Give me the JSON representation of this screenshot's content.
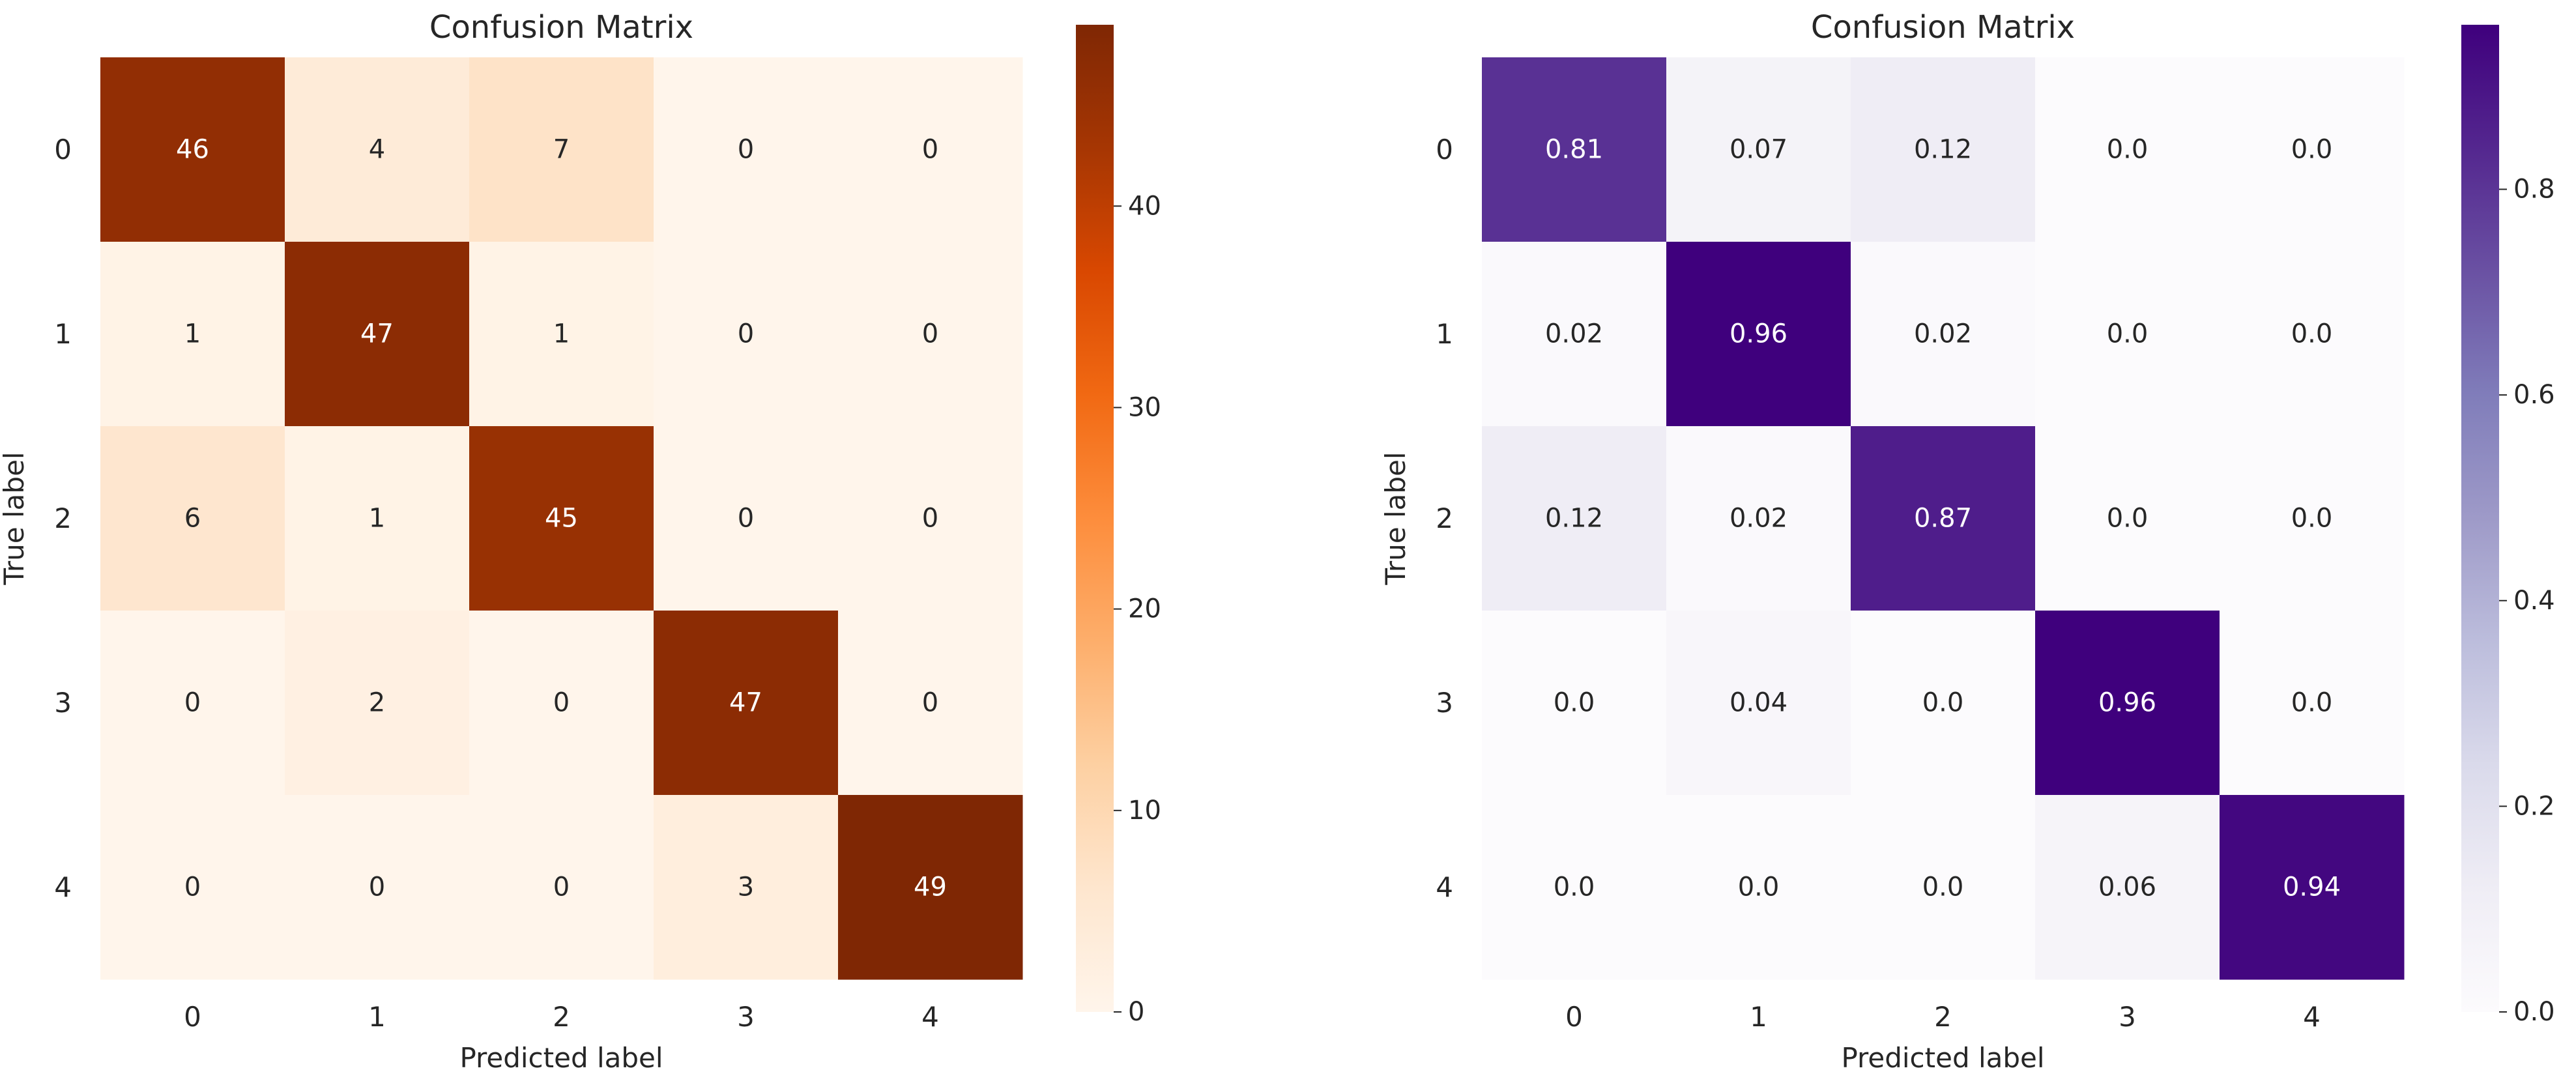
{
  "chart_data": [
    {
      "type": "heatmap",
      "title": "Confusion Matrix",
      "xlabel": "Predicted label",
      "ylabel": "True label",
      "x_categories": [
        "0",
        "1",
        "2",
        "3",
        "4"
      ],
      "y_categories": [
        "0",
        "1",
        "2",
        "3",
        "4"
      ],
      "values": [
        [
          46,
          4,
          7,
          0,
          0
        ],
        [
          1,
          47,
          1,
          0,
          0
        ],
        [
          6,
          1,
          45,
          0,
          0
        ],
        [
          0,
          2,
          0,
          47,
          0
        ],
        [
          0,
          0,
          0,
          3,
          49
        ]
      ],
      "cell_labels": [
        [
          "46",
          "4",
          "7",
          "0",
          "0"
        ],
        [
          "1",
          "47",
          "1",
          "0",
          "0"
        ],
        [
          "6",
          "1",
          "45",
          "0",
          "0"
        ],
        [
          "0",
          "2",
          "0",
          "47",
          "0"
        ],
        [
          "0",
          "0",
          "0",
          "3",
          "49"
        ]
      ],
      "colormap": "Oranges",
      "colormap_stops": [
        "#fff5eb",
        "#fee6ce",
        "#fdd0a2",
        "#fdae6b",
        "#fd8d3c",
        "#f16913",
        "#d94801",
        "#a63603",
        "#7f2704"
      ],
      "vmin": 0,
      "vmax": 49,
      "colorbar_ticks": [
        0,
        10,
        20,
        30,
        40
      ],
      "colorbar_tick_labels": [
        "0",
        "10",
        "20",
        "30",
        "40"
      ],
      "grid": false
    },
    {
      "type": "heatmap",
      "title": "Confusion Matrix",
      "xlabel": "Predicted label",
      "ylabel": "True label",
      "x_categories": [
        "0",
        "1",
        "2",
        "3",
        "4"
      ],
      "y_categories": [
        "0",
        "1",
        "2",
        "3",
        "4"
      ],
      "values": [
        [
          0.81,
          0.07,
          0.12,
          0.0,
          0.0
        ],
        [
          0.02,
          0.96,
          0.02,
          0.0,
          0.0
        ],
        [
          0.12,
          0.02,
          0.87,
          0.0,
          0.0
        ],
        [
          0.0,
          0.04,
          0.0,
          0.96,
          0.0
        ],
        [
          0.0,
          0.0,
          0.0,
          0.06,
          0.94
        ]
      ],
      "cell_labels": [
        [
          "0.81",
          "0.07",
          "0.12",
          "0.0",
          "0.0"
        ],
        [
          "0.02",
          "0.96",
          "0.02",
          "0.0",
          "0.0"
        ],
        [
          "0.12",
          "0.02",
          "0.87",
          "0.0",
          "0.0"
        ],
        [
          "0.0",
          "0.04",
          "0.0",
          "0.96",
          "0.0"
        ],
        [
          "0.0",
          "0.0",
          "0.0",
          "0.06",
          "0.94"
        ]
      ],
      "colormap": "Purples",
      "colormap_stops": [
        "#fcfbfd",
        "#efedf5",
        "#dadaeb",
        "#bcbddc",
        "#9e9ac8",
        "#807dba",
        "#6a51a3",
        "#54278f",
        "#3f007d"
      ],
      "vmin": 0.0,
      "vmax": 0.96,
      "colorbar_ticks": [
        0.0,
        0.2,
        0.4,
        0.6,
        0.8
      ],
      "colorbar_tick_labels": [
        "0.0",
        "0.2",
        "0.4",
        "0.6",
        "0.8"
      ],
      "grid": false
    }
  ]
}
